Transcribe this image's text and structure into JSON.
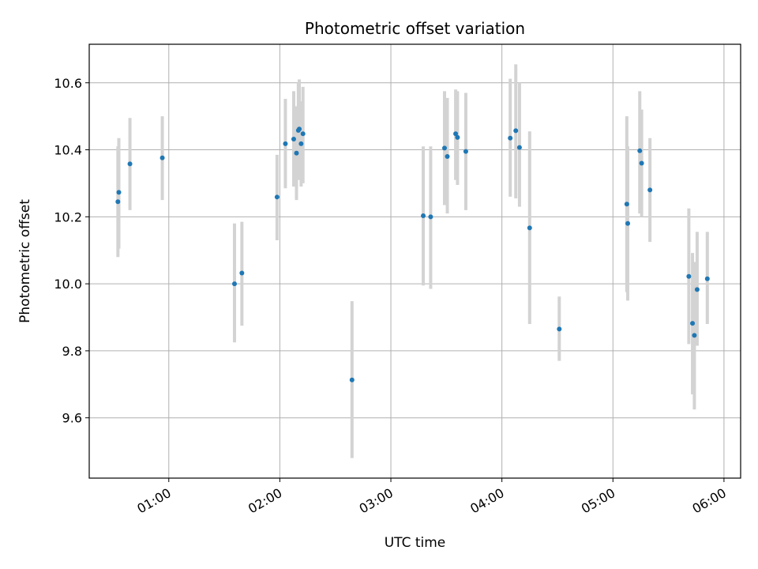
{
  "chart_data": {
    "type": "scatter",
    "title": "Photometric offset variation",
    "xlabel": "UTC time",
    "ylabel": "Photometric offset",
    "x_is_time": true,
    "xlim": [
      "00:17",
      "06:09"
    ],
    "ylim": [
      9.42,
      10.715
    ],
    "x_ticks": [
      "01:00",
      "02:00",
      "03:00",
      "04:00",
      "05:00",
      "06:00"
    ],
    "y_ticks": [
      9.6,
      9.8,
      10.0,
      10.2,
      10.4,
      10.6
    ],
    "y_tick_labels": [
      "9.6",
      "9.8",
      "10.0",
      "10.2",
      "10.4",
      "10.6"
    ],
    "grid": true,
    "colors": {
      "points": "#1f77b4",
      "errorbars": "#d3d3d3",
      "grid": "#b0b0b0"
    },
    "points": [
      {
        "x": "00:32:30",
        "y": 10.245,
        "lo": 10.08,
        "hi": 10.41
      },
      {
        "x": "00:33:00",
        "y": 10.273,
        "lo": 10.105,
        "hi": 10.435
      },
      {
        "x": "00:39:00",
        "y": 10.358,
        "lo": 10.22,
        "hi": 10.495
      },
      {
        "x": "00:56:30",
        "y": 10.376,
        "lo": 10.25,
        "hi": 10.5
      },
      {
        "x": "01:35:30",
        "y": 10.0,
        "lo": 9.825,
        "hi": 10.18
      },
      {
        "x": "01:39:30",
        "y": 10.032,
        "lo": 9.875,
        "hi": 10.185
      },
      {
        "x": "01:58:30",
        "y": 10.259,
        "lo": 10.13,
        "hi": 10.385
      },
      {
        "x": "02:03:00",
        "y": 10.418,
        "lo": 10.285,
        "hi": 10.552
      },
      {
        "x": "02:07:30",
        "y": 10.432,
        "lo": 10.29,
        "hi": 10.575
      },
      {
        "x": "02:09:00",
        "y": 10.39,
        "lo": 10.25,
        "hi": 10.53
      },
      {
        "x": "02:10:00",
        "y": 10.458,
        "lo": 10.31,
        "hi": 10.6
      },
      {
        "x": "02:10:30",
        "y": 10.462,
        "lo": 10.315,
        "hi": 10.61
      },
      {
        "x": "02:11:30",
        "y": 10.418,
        "lo": 10.29,
        "hi": 10.545
      },
      {
        "x": "02:12:30",
        "y": 10.448,
        "lo": 10.3,
        "hi": 10.588
      },
      {
        "x": "02:39:00",
        "y": 9.713,
        "lo": 9.48,
        "hi": 9.948
      },
      {
        "x": "03:17:30",
        "y": 10.203,
        "lo": 9.995,
        "hi": 10.41
      },
      {
        "x": "03:21:30",
        "y": 10.2,
        "lo": 9.985,
        "hi": 10.41
      },
      {
        "x": "03:29:00",
        "y": 10.405,
        "lo": 10.235,
        "hi": 10.575
      },
      {
        "x": "03:30:30",
        "y": 10.38,
        "lo": 10.21,
        "hi": 10.555
      },
      {
        "x": "03:35:00",
        "y": 10.448,
        "lo": 10.31,
        "hi": 10.58
      },
      {
        "x": "03:36:00",
        "y": 10.437,
        "lo": 10.295,
        "hi": 10.575
      },
      {
        "x": "03:40:30",
        "y": 10.395,
        "lo": 10.22,
        "hi": 10.57
      },
      {
        "x": "04:04:30",
        "y": 10.435,
        "lo": 10.26,
        "hi": 10.612
      },
      {
        "x": "04:07:30",
        "y": 10.457,
        "lo": 10.255,
        "hi": 10.655
      },
      {
        "x": "04:09:30",
        "y": 10.407,
        "lo": 10.23,
        "hi": 10.6
      },
      {
        "x": "04:15:00",
        "y": 10.167,
        "lo": 9.88,
        "hi": 10.455
      },
      {
        "x": "04:31:00",
        "y": 9.865,
        "lo": 9.77,
        "hi": 9.962
      },
      {
        "x": "05:07:30",
        "y": 10.238,
        "lo": 9.975,
        "hi": 10.5
      },
      {
        "x": "05:08:00",
        "y": 10.18,
        "lo": 9.95,
        "hi": 10.41
      },
      {
        "x": "05:14:30",
        "y": 10.397,
        "lo": 10.21,
        "hi": 10.575
      },
      {
        "x": "05:15:30",
        "y": 10.36,
        "lo": 10.2,
        "hi": 10.52
      },
      {
        "x": "05:20:00",
        "y": 10.28,
        "lo": 10.125,
        "hi": 10.435
      },
      {
        "x": "05:41:00",
        "y": 10.022,
        "lo": 9.82,
        "hi": 10.225
      },
      {
        "x": "05:43:00",
        "y": 9.882,
        "lo": 9.67,
        "hi": 10.092
      },
      {
        "x": "05:44:00",
        "y": 9.846,
        "lo": 9.625,
        "hi": 10.065
      },
      {
        "x": "05:45:30",
        "y": 9.983,
        "lo": 9.815,
        "hi": 10.155
      },
      {
        "x": "05:51:00",
        "y": 10.015,
        "lo": 9.88,
        "hi": 10.155
      }
    ]
  }
}
